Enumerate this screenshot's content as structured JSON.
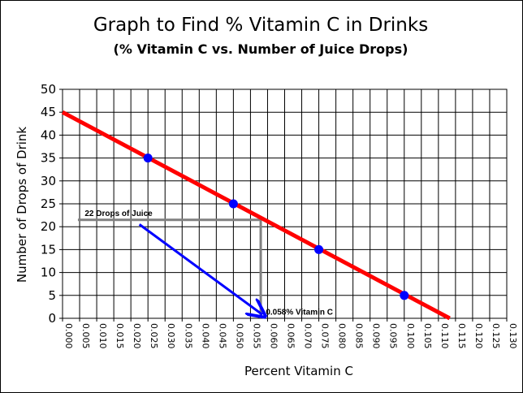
{
  "chart_data": {
    "type": "line",
    "title": "Graph to Find % Vitamin C in Drinks",
    "subtitle": "(% Vitamin C vs. Number of Juice Drops)",
    "xlabel": "Percent Vitamin C",
    "ylabel": "Number of Drops of Drink",
    "xlim": [
      0,
      0.13
    ],
    "ylim": [
      0,
      50
    ],
    "x_ticks": [
      "0.000",
      "0.005",
      "0.010",
      "0.015",
      "0.020",
      "0.025",
      "0.030",
      "0.035",
      "0.040",
      "0.045",
      "0.050",
      "0.055",
      "0.060",
      "0.065",
      "0.070",
      "0.075",
      "0.080",
      "0.085",
      "0.090",
      "0.095",
      "0.100",
      "0.105",
      "0.110",
      "0.115",
      "0.120",
      "0.125",
      "0.130"
    ],
    "y_ticks": [
      "0",
      "5",
      "10",
      "15",
      "20",
      "25",
      "30",
      "35",
      "40",
      "45",
      "50"
    ],
    "grid": true,
    "legend": "none",
    "series": [
      {
        "kind": "fit-line",
        "color": "#ff0000",
        "x": [
          0,
          0.1133
        ],
        "y": [
          45,
          0
        ]
      },
      {
        "kind": "points",
        "color": "#0000ff",
        "x": [
          0.025,
          0.05,
          0.075,
          0.1
        ],
        "y": [
          35,
          25,
          15,
          5
        ]
      }
    ],
    "annotations": [
      {
        "text": "22 Drops of Juice",
        "x": 0.0065,
        "y": 22.3,
        "color": "#000000"
      },
      {
        "text": "0.058% Vitamin C",
        "x": 0.0595,
        "y": 0.8,
        "color": "#000000"
      }
    ],
    "reference_lines": {
      "color": "#808080",
      "y_value": 21.5,
      "x_value": 0.058
    },
    "arrow": {
      "color": "#0000ff",
      "from": [
        0.0225,
        20.5
      ],
      "to": [
        0.0585,
        0.8
      ]
    },
    "colors": {
      "grid": "#000000",
      "background": "#ffffff"
    }
  }
}
